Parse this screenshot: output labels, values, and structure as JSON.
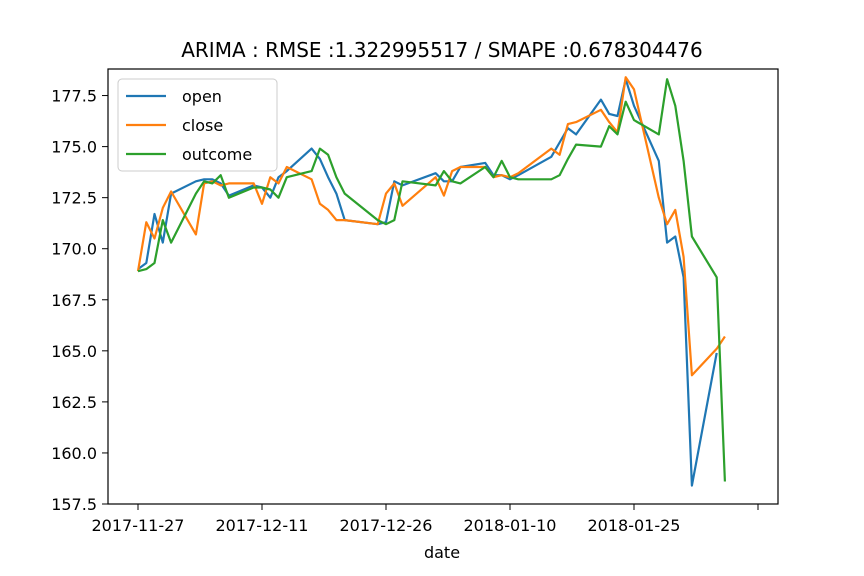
{
  "chart_data": {
    "type": "line",
    "title": "ARIMA : RMSE :1.322995517 / SMAPE :0.678304476",
    "xlabel": "date",
    "ylabel": "",
    "x_ticks": [
      "2017-11-27",
      "2017-12-11",
      "2017-12-26",
      "2018-01-10",
      "2018-01-25",
      ""
    ],
    "y_ticks": [
      "157.5",
      "160.0",
      "162.5",
      "165.0",
      "167.5",
      "170.0",
      "172.5",
      "175.0",
      "177.5"
    ],
    "ylim": [
      157.5,
      178.8
    ],
    "grid": false,
    "legend_position": "top-left",
    "colors": {
      "open": "#1f77b4",
      "close": "#ff7f0e",
      "outcome": "#2ca02c"
    },
    "x": [
      "2017-11-27",
      "2017-11-28",
      "2017-11-29",
      "2017-11-30",
      "2017-12-01",
      "2017-12-04",
      "2017-12-05",
      "2017-12-06",
      "2017-12-07",
      "2017-12-08",
      "2017-12-11",
      "2017-12-12",
      "2017-12-13",
      "2017-12-14",
      "2017-12-15",
      "2017-12-18",
      "2017-12-19",
      "2017-12-20",
      "2017-12-21",
      "2017-12-22",
      "2017-12-26",
      "2017-12-27",
      "2017-12-28",
      "2017-12-29",
      "2018-01-02",
      "2018-01-03",
      "2018-01-04",
      "2018-01-05",
      "2018-01-08",
      "2018-01-09",
      "2018-01-10",
      "2018-01-11",
      "2018-01-12",
      "2018-01-16",
      "2018-01-17",
      "2018-01-18",
      "2018-01-19",
      "2018-01-22",
      "2018-01-23",
      "2018-01-24",
      "2018-01-25",
      "2018-01-26",
      "2018-01-29",
      "2018-01-30",
      "2018-01-31",
      "2018-02-01",
      "2018-02-02",
      "2018-02-05",
      "2018-02-06"
    ],
    "series": [
      {
        "name": "open",
        "values": [
          169.0,
          169.3,
          171.7,
          170.3,
          172.7,
          173.3,
          173.4,
          173.4,
          173.2,
          172.6,
          173.1,
          173.0,
          172.5,
          173.5,
          173.8,
          174.9,
          174.4,
          173.5,
          172.7,
          171.4,
          171.2,
          171.3,
          173.3,
          173.1,
          173.7,
          173.3,
          173.3,
          174.0,
          174.2,
          173.6,
          173.6,
          173.4,
          173.6,
          174.5,
          175.2,
          175.9,
          175.6,
          177.3,
          176.6,
          176.5,
          178.3,
          177.0,
          174.3,
          170.3,
          170.6,
          168.6,
          158.4,
          164.9,
          null
        ]
      },
      {
        "name": "close",
        "values": [
          168.9,
          171.3,
          170.5,
          172.0,
          172.8,
          170.7,
          173.2,
          173.3,
          173.1,
          173.2,
          173.2,
          172.2,
          173.5,
          173.2,
          174.0,
          173.4,
          172.2,
          171.9,
          171.4,
          171.4,
          171.2,
          172.7,
          173.2,
          172.1,
          173.5,
          172.6,
          173.8,
          174.0,
          174.0,
          173.5,
          173.6,
          173.5,
          173.7,
          174.9,
          174.6,
          176.1,
          176.2,
          176.8,
          176.2,
          175.7,
          178.4,
          177.8,
          172.5,
          171.2,
          171.9,
          169.6,
          163.8,
          165.1,
          165.7
        ]
      },
      {
        "name": "outcome",
        "values": [
          168.9,
          169.0,
          169.3,
          171.4,
          170.3,
          172.7,
          173.3,
          173.2,
          173.6,
          172.5,
          173.0,
          173.0,
          172.9,
          172.5,
          173.5,
          173.8,
          174.9,
          174.6,
          173.5,
          172.7,
          171.4,
          171.2,
          171.4,
          173.3,
          173.1,
          173.8,
          173.3,
          173.2,
          174.0,
          173.5,
          174.3,
          173.5,
          173.4,
          173.4,
          173.6,
          174.4,
          175.1,
          175.0,
          176.0,
          175.6,
          177.2,
          176.3,
          175.6,
          178.3,
          177.0,
          174.3,
          170.6,
          168.6,
          158.6
        ]
      }
    ]
  }
}
